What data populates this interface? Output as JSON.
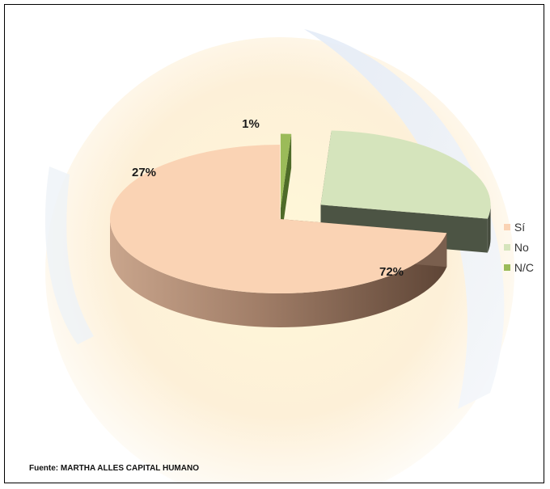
{
  "chart_data": {
    "type": "pie",
    "categories": [
      "Sí",
      "No",
      "N/C"
    ],
    "values": [
      72,
      27,
      1
    ],
    "labels": [
      "72%",
      "27%",
      "1%"
    ],
    "colors": [
      "#fad3b4",
      "#d5e4bc",
      "#9bbb59"
    ],
    "side_colors": [
      "#7a5f4e",
      "#4c5444",
      "#4e6b28"
    ],
    "legend_position": "right"
  },
  "source_text": "Fuente: MARTHA ALLES CAPITAL HUMANO"
}
